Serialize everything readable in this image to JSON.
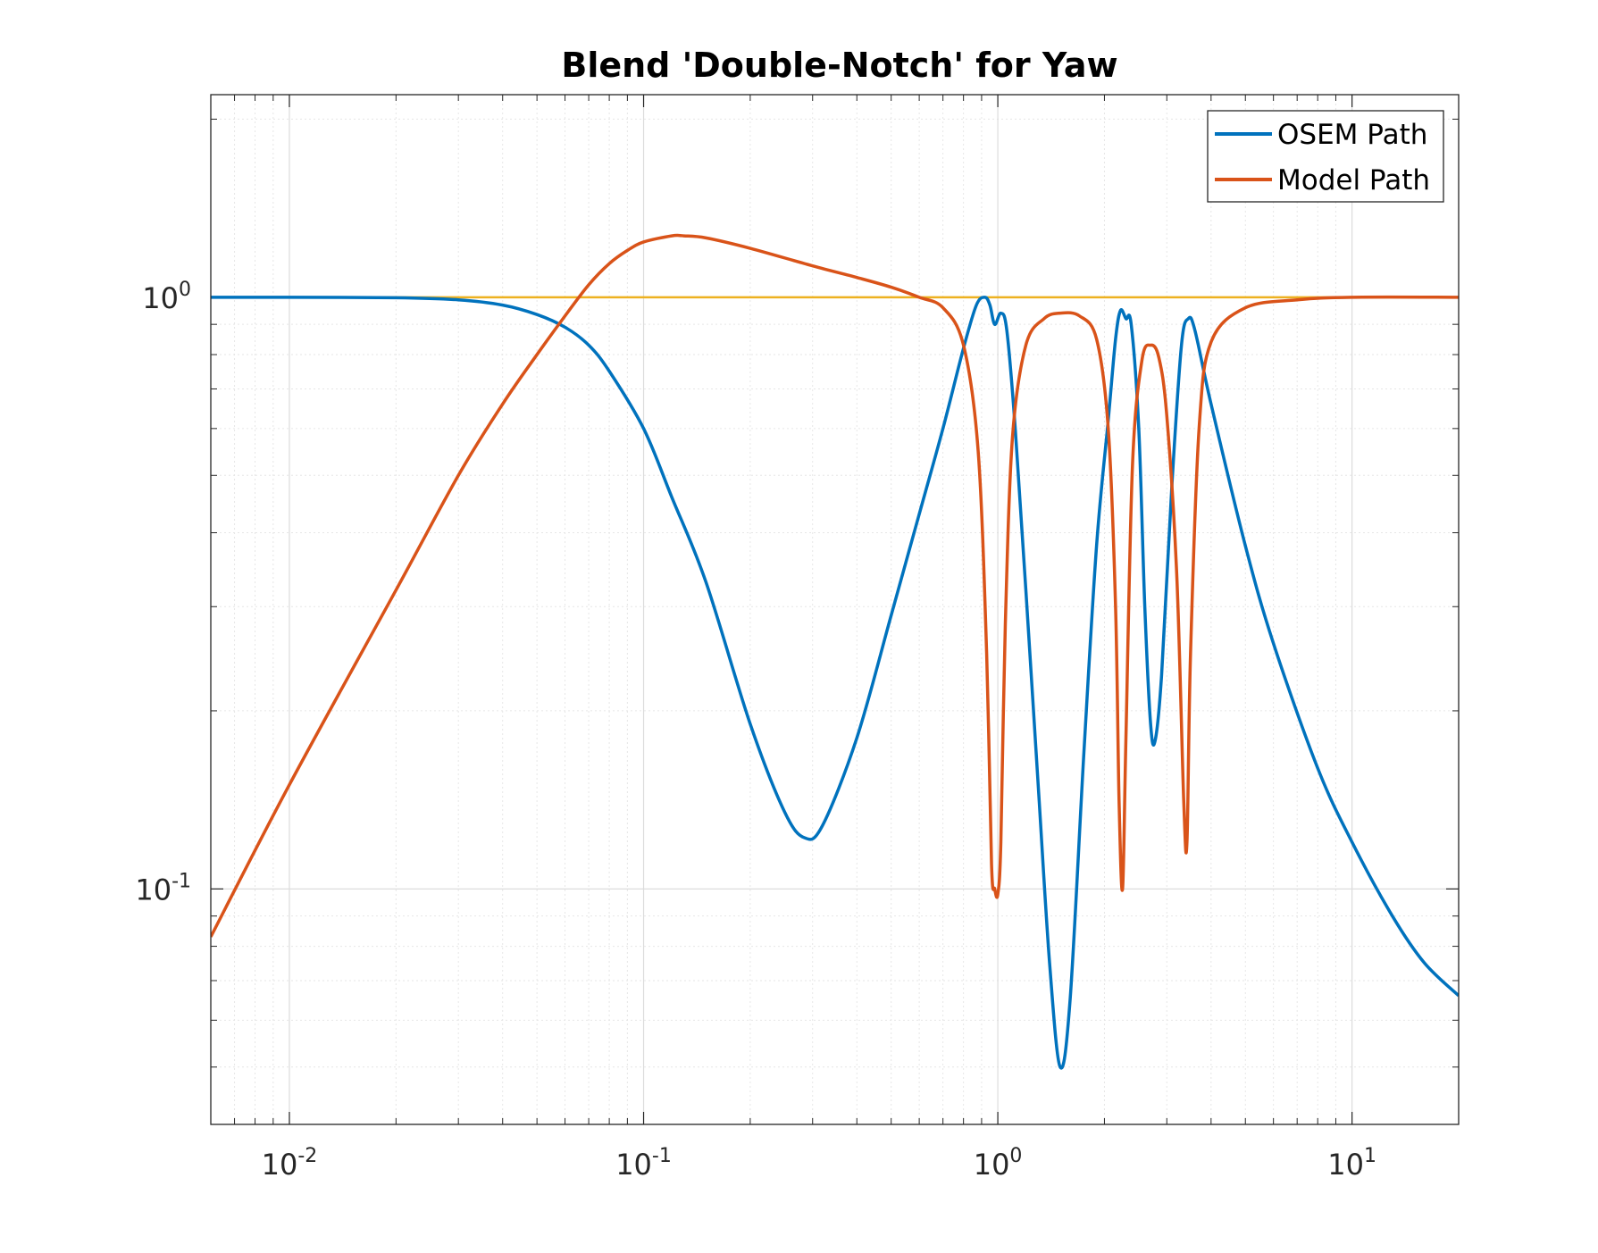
{
  "chart_data": {
    "type": "line",
    "title": "Blend 'Double-Notch' for Yaw",
    "xlabel": "",
    "ylabel": "",
    "xscale": "log",
    "yscale": "log",
    "xlim": [
      0.006,
      20
    ],
    "ylim": [
      0.04,
      2.2
    ],
    "grid": true,
    "minor_grid": true,
    "legend_position": "top-right",
    "x_ticks": [
      {
        "value": 0.01,
        "base": "10",
        "exp": "-2"
      },
      {
        "value": 0.1,
        "base": "10",
        "exp": "-1"
      },
      {
        "value": 1,
        "base": "10",
        "exp": "0"
      },
      {
        "value": 10,
        "base": "10",
        "exp": "1"
      }
    ],
    "y_ticks": [
      {
        "value": 0.1,
        "base": "10",
        "exp": "-1"
      },
      {
        "value": 1,
        "base": "10",
        "exp": "0"
      }
    ],
    "reference_line": {
      "value": 1.0,
      "color": "#EDB120"
    },
    "series": [
      {
        "name": "OSEM Path",
        "color": "#0072BD",
        "points": [
          [
            0.006,
            1.0
          ],
          [
            0.01,
            1.0
          ],
          [
            0.02,
            0.998
          ],
          [
            0.03,
            0.99
          ],
          [
            0.04,
            0.97
          ],
          [
            0.05,
            0.935
          ],
          [
            0.06,
            0.89
          ],
          [
            0.07,
            0.83
          ],
          [
            0.08,
            0.75
          ],
          [
            0.1,
            0.6
          ],
          [
            0.12,
            0.46
          ],
          [
            0.15,
            0.33
          ],
          [
            0.2,
            0.19
          ],
          [
            0.25,
            0.135
          ],
          [
            0.285,
            0.122
          ],
          [
            0.32,
            0.128
          ],
          [
            0.4,
            0.18
          ],
          [
            0.5,
            0.29
          ],
          [
            0.6,
            0.43
          ],
          [
            0.7,
            0.6
          ],
          [
            0.8,
            0.82
          ],
          [
            0.87,
            0.97
          ],
          [
            0.92,
            1.0
          ],
          [
            0.95,
            0.97
          ],
          [
            0.98,
            0.9
          ],
          [
            1.02,
            0.94
          ],
          [
            1.06,
            0.88
          ],
          [
            1.12,
            0.6
          ],
          [
            1.2,
            0.32
          ],
          [
            1.3,
            0.15
          ],
          [
            1.4,
            0.075
          ],
          [
            1.5,
            0.05
          ],
          [
            1.6,
            0.065
          ],
          [
            1.75,
            0.17
          ],
          [
            1.9,
            0.38
          ],
          [
            2.05,
            0.62
          ],
          [
            2.15,
            0.85
          ],
          [
            2.22,
            0.95
          ],
          [
            2.3,
            0.92
          ],
          [
            2.38,
            0.9
          ],
          [
            2.5,
            0.6
          ],
          [
            2.6,
            0.3
          ],
          [
            2.7,
            0.19
          ],
          [
            2.78,
            0.178
          ],
          [
            2.9,
            0.23
          ],
          [
            3.1,
            0.48
          ],
          [
            3.3,
            0.83
          ],
          [
            3.45,
            0.92
          ],
          [
            3.6,
            0.88
          ],
          [
            4.0,
            0.66
          ],
          [
            5.0,
            0.38
          ],
          [
            6.0,
            0.26
          ],
          [
            8.0,
            0.16
          ],
          [
            10.0,
            0.12
          ],
          [
            13.0,
            0.09
          ],
          [
            16.0,
            0.075
          ],
          [
            20.0,
            0.066
          ]
        ]
      },
      {
        "name": "Model Path",
        "color": "#D95319",
        "points": [
          [
            0.006,
            0.083
          ],
          [
            0.01,
            0.15
          ],
          [
            0.02,
            0.32
          ],
          [
            0.03,
            0.5
          ],
          [
            0.04,
            0.66
          ],
          [
            0.05,
            0.8
          ],
          [
            0.06,
            0.93
          ],
          [
            0.07,
            1.05
          ],
          [
            0.08,
            1.14
          ],
          [
            0.09,
            1.2
          ],
          [
            0.1,
            1.24
          ],
          [
            0.12,
            1.27
          ],
          [
            0.13,
            1.27
          ],
          [
            0.15,
            1.26
          ],
          [
            0.2,
            1.21
          ],
          [
            0.3,
            1.13
          ],
          [
            0.4,
            1.08
          ],
          [
            0.5,
            1.04
          ],
          [
            0.6,
            1.0
          ],
          [
            0.7,
            0.96
          ],
          [
            0.8,
            0.83
          ],
          [
            0.88,
            0.55
          ],
          [
            0.93,
            0.25
          ],
          [
            0.96,
            0.11
          ],
          [
            0.98,
            0.1
          ],
          [
            1.0,
            0.098
          ],
          [
            1.02,
            0.12
          ],
          [
            1.05,
            0.28
          ],
          [
            1.1,
            0.58
          ],
          [
            1.2,
            0.83
          ],
          [
            1.35,
            0.92
          ],
          [
            1.5,
            0.94
          ],
          [
            1.7,
            0.93
          ],
          [
            1.9,
            0.85
          ],
          [
            2.05,
            0.6
          ],
          [
            2.15,
            0.3
          ],
          [
            2.2,
            0.14
          ],
          [
            2.25,
            0.1
          ],
          [
            2.3,
            0.18
          ],
          [
            2.4,
            0.52
          ],
          [
            2.55,
            0.78
          ],
          [
            2.7,
            0.83
          ],
          [
            2.85,
            0.79
          ],
          [
            3.0,
            0.63
          ],
          [
            3.2,
            0.34
          ],
          [
            3.35,
            0.14
          ],
          [
            3.42,
            0.12
          ],
          [
            3.5,
            0.25
          ],
          [
            3.7,
            0.6
          ],
          [
            4.0,
            0.84
          ],
          [
            5.0,
            0.96
          ],
          [
            7.0,
            0.99
          ],
          [
            10.0,
            1.0
          ],
          [
            20.0,
            1.0
          ]
        ]
      }
    ]
  }
}
